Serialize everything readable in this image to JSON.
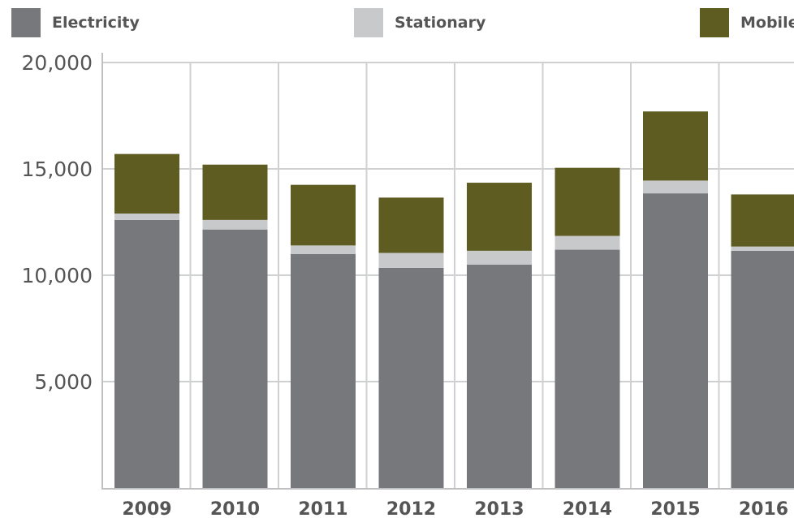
{
  "legend": [
    {
      "label": "Electricity",
      "color": "#77787b"
    },
    {
      "label": "Stationary",
      "color": "#c8c9cb"
    },
    {
      "label": "Mobile",
      "color": "#5f5c22"
    }
  ],
  "chart_data": {
    "type": "bar",
    "stacked": true,
    "title": "",
    "xlabel": "",
    "ylabel": "",
    "categories": [
      "2009",
      "2010",
      "2011",
      "2012",
      "2013",
      "2014",
      "2015",
      "2016"
    ],
    "series": [
      {
        "name": "Electricity",
        "color": "#77787b",
        "values": [
          12600,
          12150,
          11000,
          10350,
          10500,
          11200,
          13850,
          11150
        ]
      },
      {
        "name": "Stationary",
        "color": "#c8c9cb",
        "values": [
          300,
          450,
          400,
          700,
          650,
          650,
          600,
          200
        ]
      },
      {
        "name": "Mobile",
        "color": "#5f5c22",
        "values": [
          2800,
          2600,
          2850,
          2600,
          3200,
          3200,
          3250,
          2450
        ]
      }
    ],
    "ylim": [
      0,
      20000
    ],
    "yticks": [
      5000,
      10000,
      15000,
      20000
    ],
    "ytick_labels": [
      "5,000",
      "10,000",
      "15,000",
      "20,000"
    ],
    "grid": true,
    "legend_position": "top"
  }
}
